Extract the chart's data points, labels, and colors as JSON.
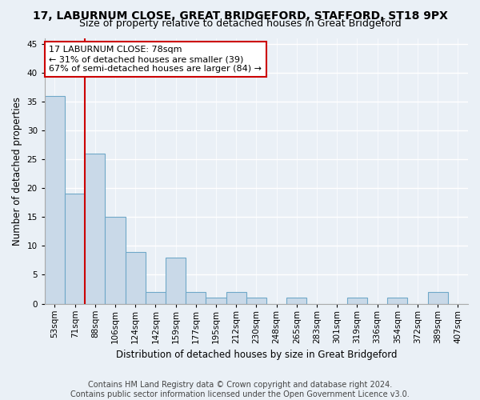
{
  "title": "17, LABURNUM CLOSE, GREAT BRIDGEFORD, STAFFORD, ST18 9PX",
  "subtitle": "Size of property relative to detached houses in Great Bridgeford",
  "xlabel": "Distribution of detached houses by size in Great Bridgeford",
  "ylabel": "Number of detached properties",
  "categories": [
    "53sqm",
    "71sqm",
    "88sqm",
    "106sqm",
    "124sqm",
    "142sqm",
    "159sqm",
    "177sqm",
    "195sqm",
    "212sqm",
    "230sqm",
    "248sqm",
    "265sqm",
    "283sqm",
    "301sqm",
    "319sqm",
    "336sqm",
    "354sqm",
    "372sqm",
    "389sqm",
    "407sqm"
  ],
  "values": [
    36,
    19,
    26,
    15,
    9,
    2,
    8,
    2,
    1,
    2,
    1,
    0,
    1,
    0,
    0,
    1,
    0,
    1,
    0,
    2,
    0
  ],
  "bar_color": "#c9d9e8",
  "bar_edge_color": "#6fa8c8",
  "ylim": [
    0,
    46
  ],
  "yticks": [
    0,
    5,
    10,
    15,
    20,
    25,
    30,
    35,
    40,
    45
  ],
  "vline_x_index": 1,
  "vline_color": "#cc0000",
  "annotation_text": "17 LABURNUM CLOSE: 78sqm\n← 31% of detached houses are smaller (39)\n67% of semi-detached houses are larger (84) →",
  "annotation_box_color": "#ffffff",
  "annotation_box_edge": "#cc0000",
  "footer_line1": "Contains HM Land Registry data © Crown copyright and database right 2024.",
  "footer_line2": "Contains public sector information licensed under the Open Government Licence v3.0.",
  "bg_color": "#eaf0f6",
  "grid_color": "#ffffff",
  "title_fontsize": 10,
  "subtitle_fontsize": 9,
  "axis_label_fontsize": 8.5,
  "tick_fontsize": 7.5,
  "annotation_fontsize": 8,
  "footer_fontsize": 7
}
